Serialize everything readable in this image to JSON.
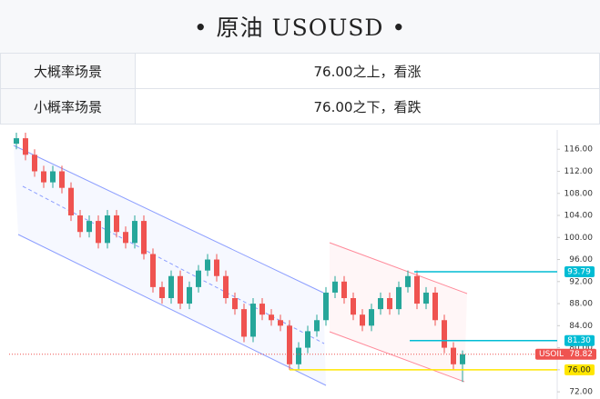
{
  "header": {
    "title": "• 原油  USOUSD •"
  },
  "table": {
    "rows": [
      [
        "大概率场景",
        "76.00之上，看涨"
      ],
      [
        "小概率场景",
        "76.00之下，看跌"
      ]
    ]
  },
  "chart_data": {
    "type": "candlestick",
    "open": [
      117,
      118,
      115,
      112,
      110,
      112,
      109,
      104,
      101,
      103,
      99,
      104,
      101,
      99,
      103,
      97,
      91,
      89,
      93,
      88,
      91,
      94,
      96,
      93,
      89,
      87,
      82,
      88,
      86,
      85,
      84,
      77,
      80,
      83,
      85,
      90,
      92,
      89,
      86,
      84,
      87,
      89,
      87,
      91,
      93,
      88,
      90,
      85,
      80,
      77
    ],
    "close": [
      118,
      115,
      112,
      110,
      112,
      109,
      104,
      101,
      103,
      99,
      104,
      101,
      99,
      103,
      97,
      91,
      89,
      93,
      88,
      91,
      94,
      96,
      93,
      89,
      87,
      82,
      88,
      86,
      85,
      84,
      77,
      80,
      83,
      85,
      90,
      92,
      89,
      86,
      84,
      87,
      89,
      87,
      91,
      93,
      88,
      90,
      85,
      80,
      77,
      78.82
    ],
    "high": [
      119,
      119,
      116,
      113,
      113,
      113,
      110,
      105,
      104,
      104,
      105,
      105,
      102,
      104,
      104,
      98,
      92,
      94,
      94,
      92,
      95,
      97,
      97,
      94,
      90,
      88,
      89,
      89,
      87,
      86,
      85,
      81,
      84,
      86,
      91,
      93,
      93,
      90,
      87,
      88,
      90,
      90,
      92,
      94,
      94,
      91,
      91,
      86,
      81,
      79.5
    ],
    "low": [
      116,
      114,
      111,
      109,
      109,
      108,
      103,
      100,
      100,
      98,
      98,
      100,
      98,
      98,
      96,
      90,
      88,
      88,
      87,
      87,
      90,
      93,
      92,
      88,
      86,
      81,
      81,
      85,
      84,
      83,
      76,
      76,
      79,
      82,
      84,
      89,
      88,
      85,
      83,
      83,
      86,
      86,
      86,
      90,
      87,
      87,
      84,
      79,
      76,
      73.8
    ],
    "up_color": "#26a69a",
    "down_color": "#ef5350",
    "ylim": [
      70.7,
      119.5
    ],
    "yticks": [
      {
        "value": 116,
        "label": "116.00"
      },
      {
        "value": 112,
        "label": "112.00"
      },
      {
        "value": 108,
        "label": "108.00"
      },
      {
        "value": 104,
        "label": "104.00"
      },
      {
        "value": 100,
        "label": "100.00"
      },
      {
        "value": 96,
        "label": "96.00"
      },
      {
        "value": 92,
        "label": "92.00"
      },
      {
        "value": 88,
        "label": "88.00"
      },
      {
        "value": 84,
        "label": "84.00"
      },
      {
        "value": 80,
        "label": "80.00"
      },
      {
        "value": 76,
        "label": "76.00"
      },
      {
        "value": 72,
        "label": "72.00"
      }
    ],
    "levels": {
      "values": [
        93.79,
        81.3,
        76
      ],
      "value_labels": [
        "93.79",
        "81.30",
        "76.00"
      ],
      "colors": [
        "#00bcd4",
        "#00bcd4",
        "#ffe600"
      ]
    },
    "price_tag": {
      "name": "USOIL",
      "value": 78.82,
      "color": "#ef5350"
    }
  }
}
